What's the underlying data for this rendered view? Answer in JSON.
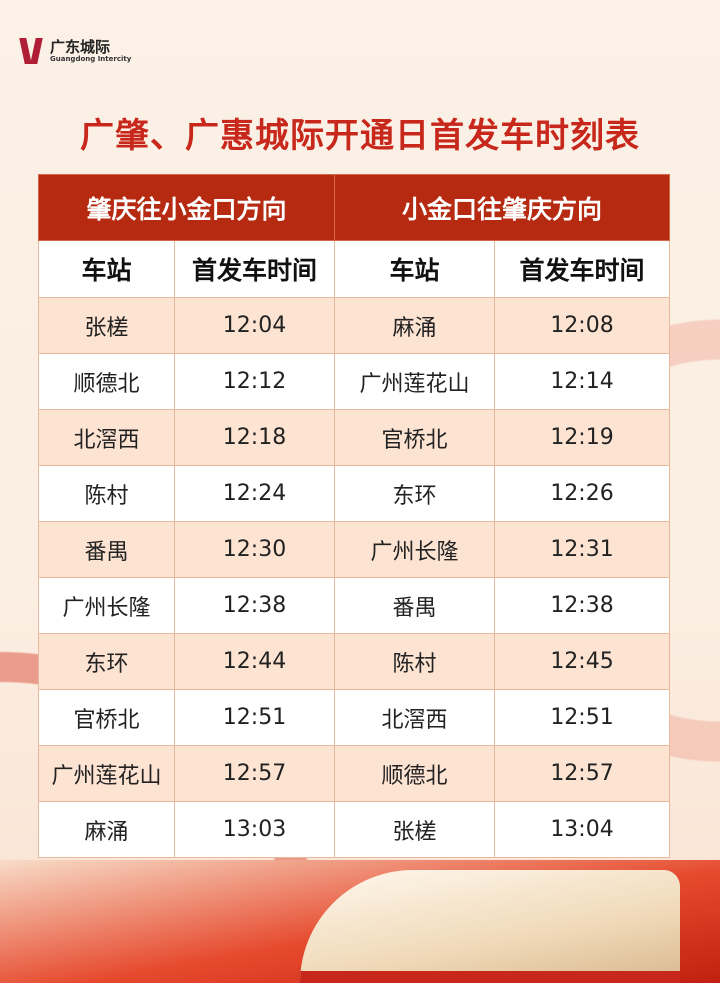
{
  "logo": {
    "name_cn": "广东城际",
    "name_en": "Guangdong Intercity"
  },
  "title": "广肇、广惠城际开通日首发车时刻表",
  "colors": {
    "accent": "#b52a10",
    "title": "#c8281c",
    "row_alt": "#fde3d2"
  },
  "table": {
    "directions": [
      "肇庆往小金口方向",
      "小金口往肇庆方向"
    ],
    "columns": [
      "车站",
      "首发车时间",
      "车站",
      "首发车时间"
    ],
    "rows": [
      [
        "张槎",
        "12:04",
        "麻涌",
        "12:08"
      ],
      [
        "顺德北",
        "12:12",
        "广州莲花山",
        "12:14"
      ],
      [
        "北滘西",
        "12:18",
        "官桥北",
        "12:19"
      ],
      [
        "陈村",
        "12:24",
        "东环",
        "12:26"
      ],
      [
        "番禺",
        "12:30",
        "广州长隆",
        "12:31"
      ],
      [
        "广州长隆",
        "12:38",
        "番禺",
        "12:38"
      ],
      [
        "东环",
        "12:44",
        "陈村",
        "12:45"
      ],
      [
        "官桥北",
        "12:51",
        "北滘西",
        "12:51"
      ],
      [
        "广州莲花山",
        "12:57",
        "顺德北",
        "12:57"
      ],
      [
        "麻涌",
        "13:03",
        "张槎",
        "13:04"
      ]
    ]
  }
}
